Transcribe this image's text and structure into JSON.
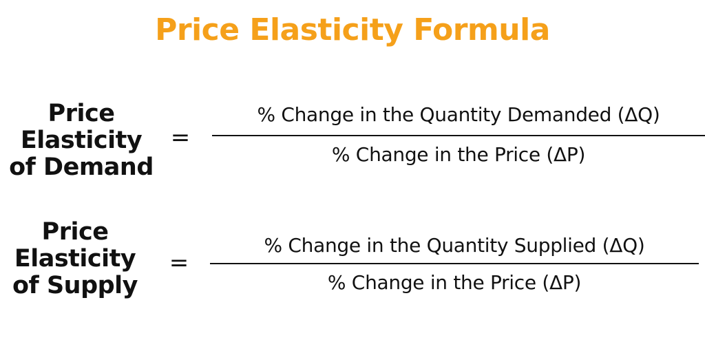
{
  "title": "Price Elasticity Formula",
  "colors": {
    "title": "#f5a01a",
    "text": "#111111",
    "background": "#ffffff"
  },
  "demand": {
    "term_lines": [
      "Price",
      "Elasticity",
      "of Demand"
    ],
    "equals": "=",
    "numerator": "% Change in the Quantity Demanded (ΔQ)",
    "denominator": "% Change in the Price (ΔP)"
  },
  "supply": {
    "term_lines": [
      "Price",
      "Elasticity",
      "of Supply"
    ],
    "equals": "=",
    "numerator": "% Change in the Quantity Supplied (ΔQ)",
    "denominator": "% Change in the Price (ΔP)"
  }
}
